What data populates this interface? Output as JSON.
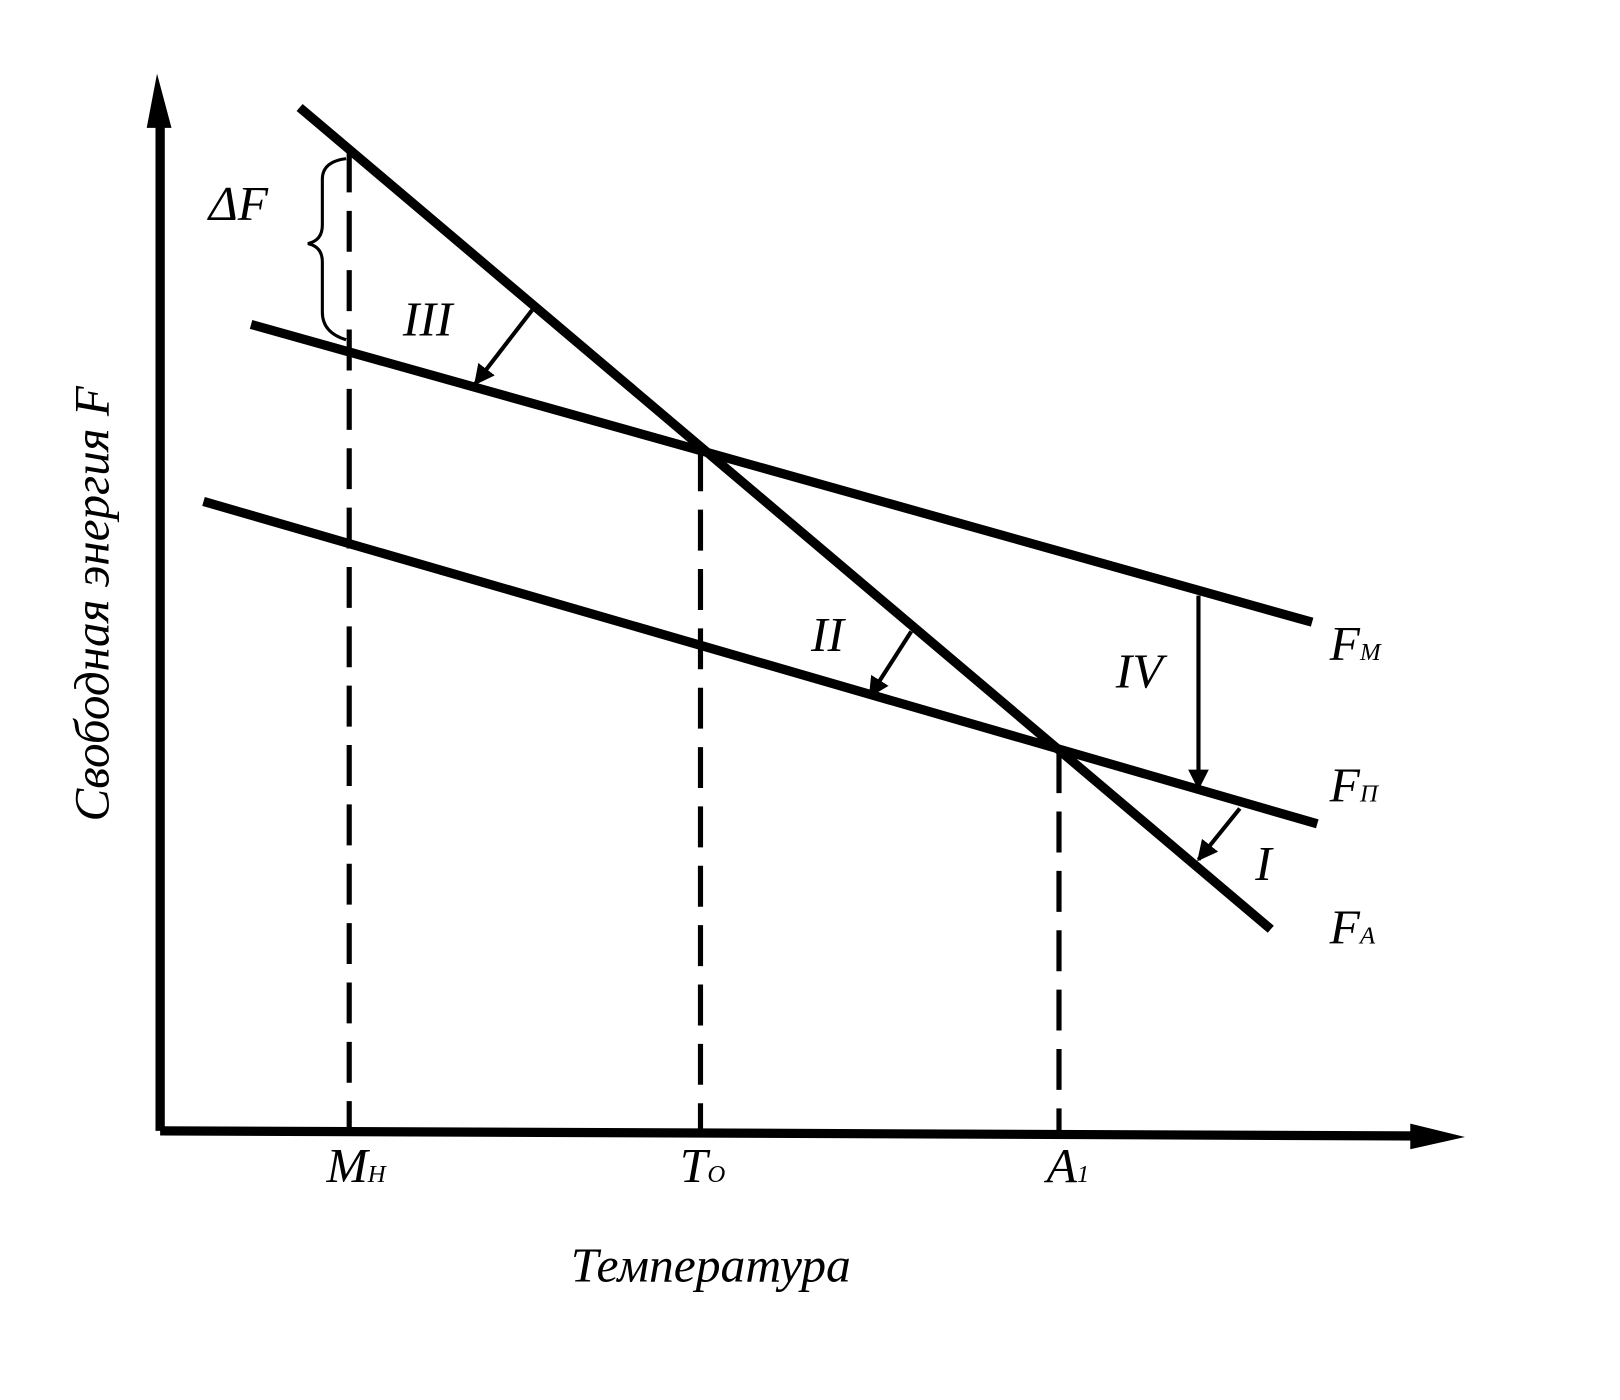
{
  "axes": {
    "y_label": "Свободная энергия F",
    "x_label": "Температура"
  },
  "x_ticks": [
    {
      "main": "M",
      "sub": "Н"
    },
    {
      "main": "T",
      "sub": "О"
    },
    {
      "main": "A",
      "sub": "1"
    }
  ],
  "curves": [
    {
      "main": "F",
      "sub": "М"
    },
    {
      "main": "F",
      "sub": "П"
    },
    {
      "main": "F",
      "sub": "А"
    }
  ],
  "transitions": [
    "III",
    "II",
    "IV",
    "I"
  ],
  "delta": "ΔF"
}
